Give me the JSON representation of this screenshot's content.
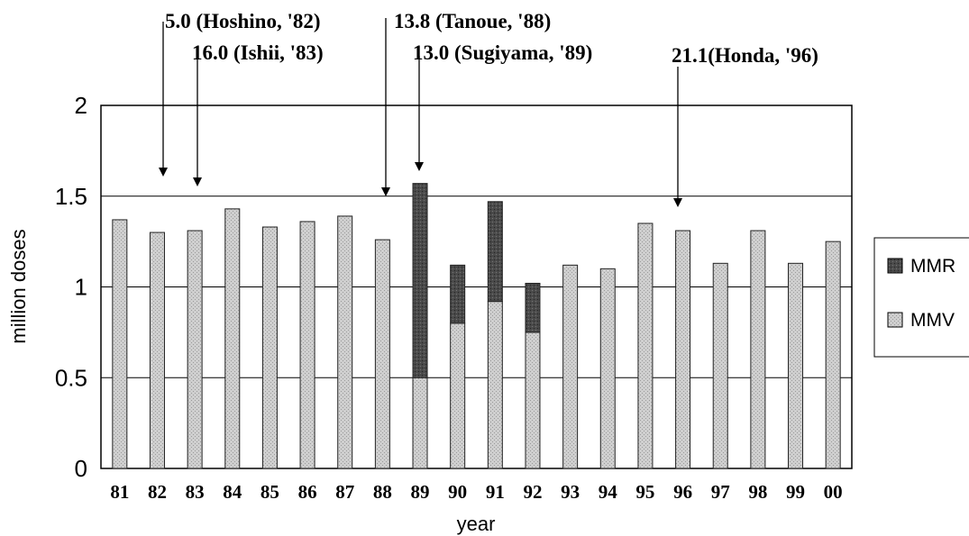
{
  "chart_data": {
    "type": "bar",
    "stacked": true,
    "categories": [
      "81",
      "82",
      "83",
      "84",
      "85",
      "86",
      "87",
      "88",
      "89",
      "90",
      "91",
      "92",
      "93",
      "94",
      "95",
      "96",
      "97",
      "98",
      "99",
      "00"
    ],
    "series": [
      {
        "name": "MMV",
        "color": "#c8c8c8",
        "values": [
          1.37,
          1.3,
          1.31,
          1.43,
          1.33,
          1.36,
          1.39,
          1.26,
          0.5,
          0.8,
          0.92,
          0.75,
          1.12,
          1.1,
          1.35,
          1.31,
          1.13,
          1.31,
          1.13,
          1.25
        ]
      },
      {
        "name": "MMR",
        "color": "#444444",
        "values": [
          0,
          0,
          0,
          0,
          0,
          0,
          0,
          0,
          1.07,
          0.32,
          0.55,
          0.27,
          0,
          0,
          0,
          0,
          0,
          0,
          0,
          0
        ]
      }
    ],
    "xlabel": "year",
    "ylabel": "million doses",
    "ylim": [
      0,
      2
    ],
    "yticks": [
      "0",
      "0.5",
      "1",
      "1.5",
      "2"
    ],
    "grid": true,
    "legend_position": "right",
    "annotations": [
      {
        "text": "5.0 (Hoshino, '82)",
        "target": "82"
      },
      {
        "text": "16.0 (Ishii, '83)",
        "target": "83"
      },
      {
        "text": "13.8 (Tanoue, '88)",
        "target": "88"
      },
      {
        "text": "13.0 (Sugiyama, '89)",
        "target": "89"
      },
      {
        "text": "21.1(Honda, '96)",
        "target": "96"
      }
    ]
  }
}
